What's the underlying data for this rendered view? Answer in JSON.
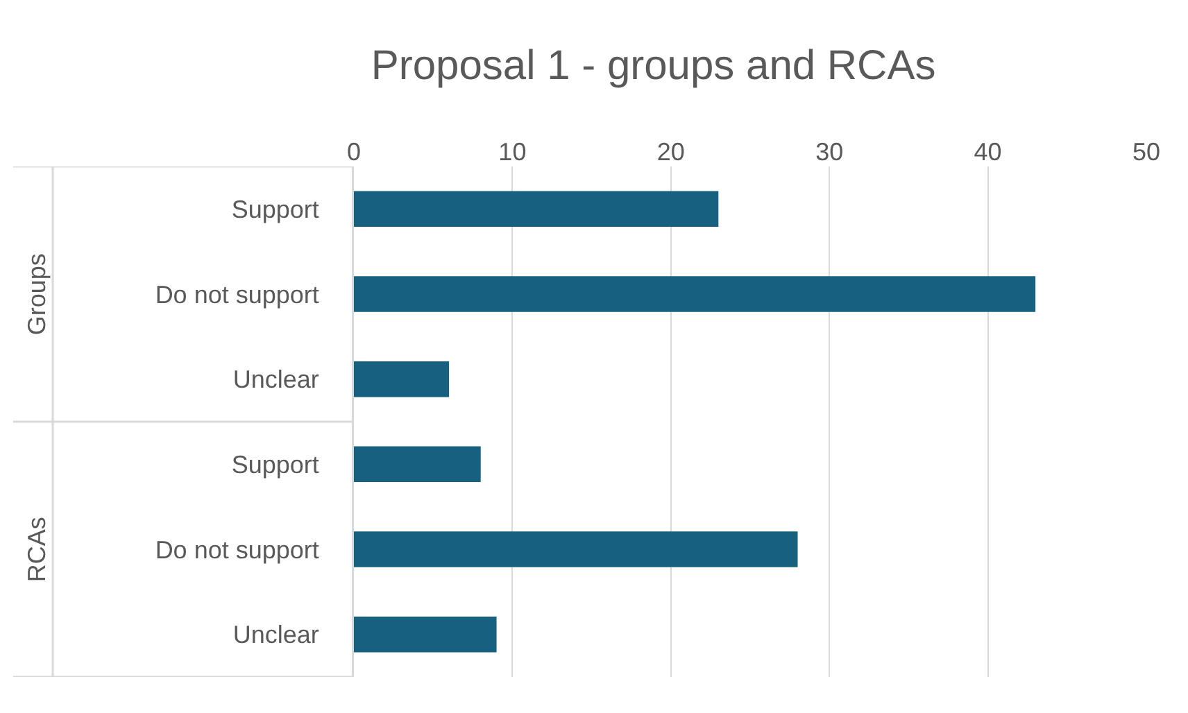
{
  "chart_data": {
    "type": "bar",
    "orientation": "horizontal",
    "title": "Proposal 1 - groups and RCAs",
    "categories": [
      "Support",
      "Do not support",
      "Unclear",
      "Support",
      "Do not support",
      "Unclear"
    ],
    "values": [
      23,
      43,
      6,
      8,
      28,
      9
    ],
    "color": "#17607f",
    "xlim": [
      0,
      50
    ],
    "xticks": [
      0,
      10,
      20,
      30,
      40,
      50
    ],
    "grid": "x",
    "annotations": [
      "Groups",
      "RCAs"
    ]
  }
}
